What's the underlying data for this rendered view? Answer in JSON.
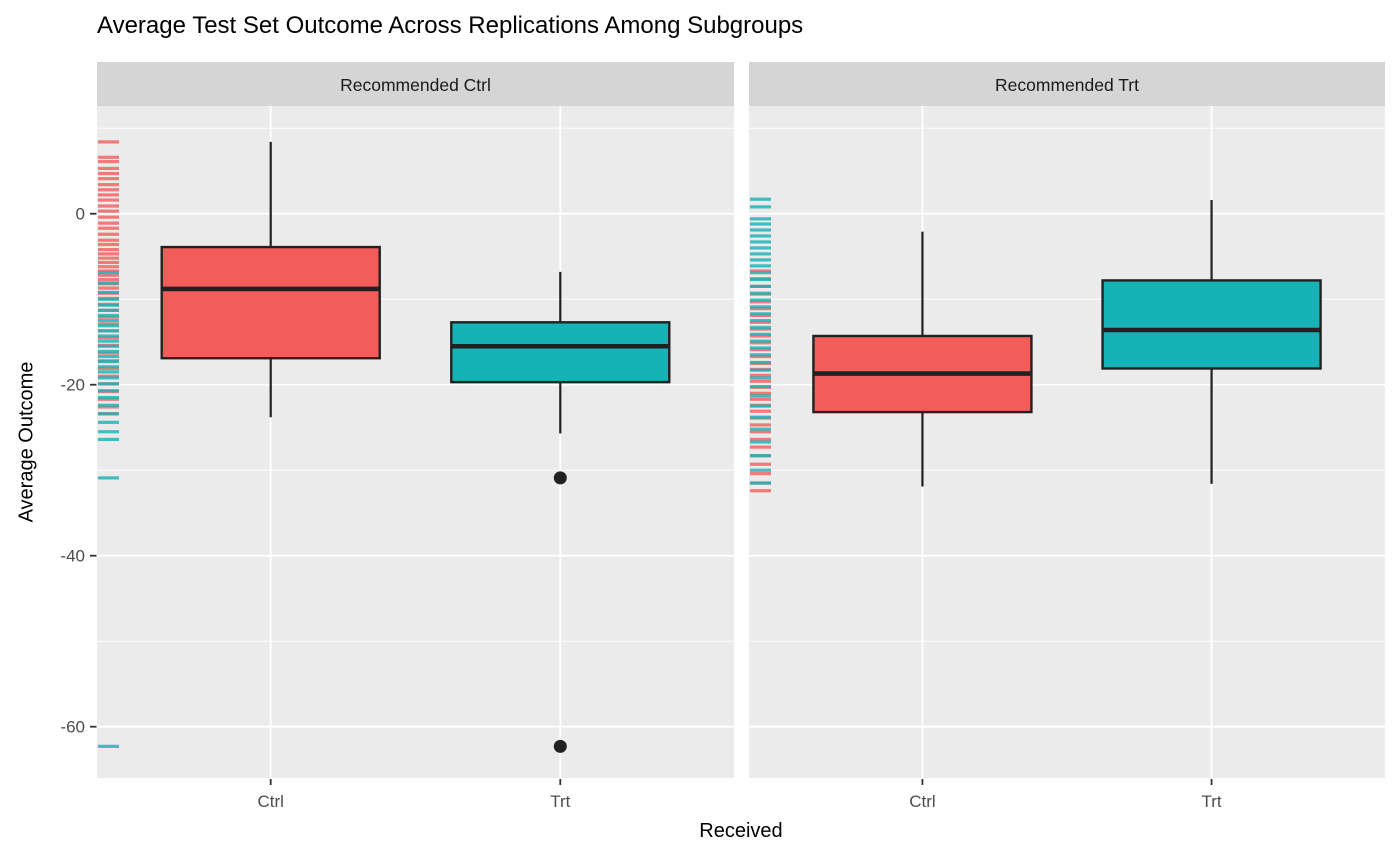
{
  "chart_data": {
    "type": "boxplot",
    "title": "Average Test Set Outcome Across Replications Among Subgroups",
    "xlabel": "Received",
    "ylabel": "Average Outcome",
    "legend_position": "none",
    "grid": true,
    "ylim": [
      12.6,
      -66.0
    ],
    "y_ticks": [
      0,
      -20,
      -40,
      -60
    ],
    "y_tick_labels": [
      "0",
      "-20",
      "-40",
      "-60"
    ],
    "y_minor_gridlines": [
      10,
      -10,
      -30,
      -50
    ],
    "categories": [
      "Ctrl",
      "Trt"
    ],
    "colors": {
      "ctrl_fill": "#F45C5A",
      "trt_fill": "#17B2B6",
      "outline": "#212121",
      "panel_bg": "#EBEBEB",
      "strip_bg": "#D5D5D5",
      "gridline": "#FFFFFF",
      "tick_label": "#4D4D4D",
      "strip_text": "#1A1A1A",
      "axis_tick": "#333333"
    },
    "facets": [
      {
        "label": "Recommended Ctrl",
        "boxes": [
          {
            "category": "Ctrl",
            "group": "ctrl",
            "whisker_low": -23.8,
            "q1": -16.9,
            "median": -8.8,
            "q3": -3.9,
            "whisker_high": 8.4,
            "outliers": []
          },
          {
            "category": "Trt",
            "group": "trt",
            "whisker_low": -25.7,
            "q1": -19.7,
            "median": -15.5,
            "q3": -12.7,
            "whisker_high": -6.8,
            "outliers": [
              -30.9,
              -62.3
            ]
          }
        ],
        "rug_ctrl": [
          8.4,
          6.6,
          6.1,
          5.3,
          4.7,
          4.1,
          3.4,
          2.8,
          2.2,
          1.6,
          0.9,
          0.3,
          -0.4,
          -1.1,
          -1.7,
          -2.4,
          -3.1,
          -3.6,
          -4.2,
          -4.7,
          -5.2,
          -5.7,
          -6.2,
          -6.7,
          -7.2,
          -7.7,
          -8.2,
          -8.7,
          -9.3,
          -9.9,
          -10.6,
          -11.3,
          -12.1,
          -12.9,
          -13.7,
          -14.5,
          -15.4,
          -16.3,
          -17.2,
          -18.1,
          -19.0,
          -19.9,
          -20.8,
          -21.7,
          -22.6,
          -23.4
        ],
        "rug_trt": [
          -6.9,
          -8.1,
          -9.2,
          -10.0,
          -10.7,
          -11.3,
          -11.9,
          -12.5,
          -13.1,
          -13.7,
          -14.3,
          -14.9,
          -15.5,
          -16.1,
          -16.7,
          -17.3,
          -17.9,
          -18.5,
          -19.2,
          -19.9,
          -20.7,
          -21.5,
          -22.4,
          -23.4,
          -24.4,
          -25.5,
          -26.4,
          -30.9,
          -62.3
        ]
      },
      {
        "label": "Recommended Trt",
        "boxes": [
          {
            "category": "Ctrl",
            "group": "ctrl",
            "whisker_low": -31.9,
            "q1": -23.2,
            "median": -18.7,
            "q3": -14.3,
            "whisker_high": -2.1,
            "outliers": []
          },
          {
            "category": "Trt",
            "group": "trt",
            "whisker_low": -31.6,
            "q1": -18.1,
            "median": -13.6,
            "q3": -7.8,
            "whisker_high": 1.6,
            "outliers": []
          }
        ],
        "rug_ctrl": [
          -6.7,
          -7.6,
          -8.5,
          -9.4,
          -10.3,
          -11.1,
          -11.9,
          -12.7,
          -13.5,
          -14.3,
          -15.1,
          -15.9,
          -16.7,
          -17.5,
          -18.2,
          -18.9,
          -19.6,
          -20.3,
          -21.0,
          -21.7,
          -22.4,
          -23.1,
          -23.9,
          -24.7,
          -25.5,
          -26.4,
          -27.3,
          -28.3,
          -29.3,
          -30.4,
          -31.5,
          -32.4
        ],
        "rug_trt": [
          1.7,
          0.8,
          -0.6,
          -1.2,
          -1.9,
          -2.6,
          -3.3,
          -4.0,
          -4.7,
          -5.4,
          -6.1,
          -6.9,
          -7.7,
          -8.5,
          -9.3,
          -10.1,
          -10.9,
          -11.7,
          -12.5,
          -13.3,
          -14.1,
          -14.9,
          -15.7,
          -16.5,
          -17.4,
          -18.3,
          -19.2,
          -20.2,
          -21.3,
          -22.5,
          -23.8,
          -25.2,
          -26.7,
          -28.3,
          -30.0,
          -31.5
        ]
      }
    ]
  }
}
